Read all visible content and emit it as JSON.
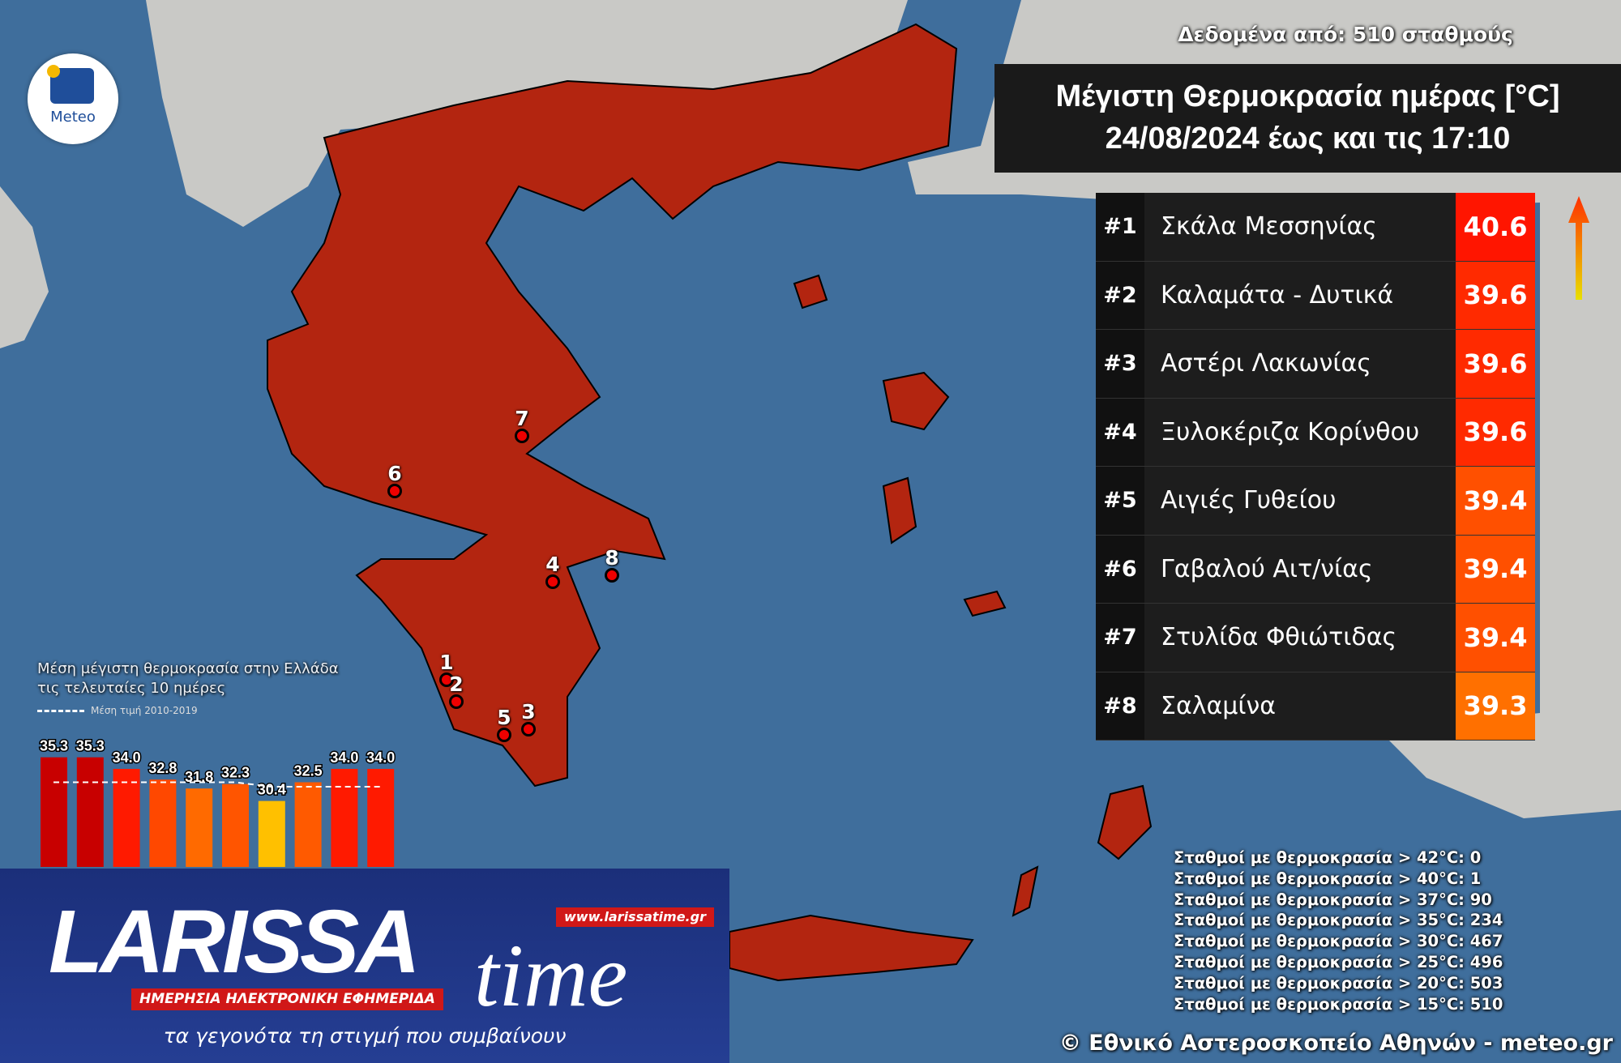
{
  "header": {
    "data_source": "Δεδομένα από: 510 σταθμούς",
    "title_line1": "Μέγιστη Θερμοκρασία ημέρας [°C]",
    "title_line2": "24/08/2024 έως και τις 17:10"
  },
  "logo": {
    "text": "Meteo",
    "icon": "meteo-logo"
  },
  "ranking": [
    {
      "rank": "#1",
      "station": "Σκάλα Μεσσηνίας",
      "value": "40.6",
      "color": "#ff1500"
    },
    {
      "rank": "#2",
      "station": "Καλαμάτα - Δυτικά",
      "value": "39.6",
      "color": "#ff2a00"
    },
    {
      "rank": "#3",
      "station": "Αστέρι Λακωνίας",
      "value": "39.6",
      "color": "#ff2a00"
    },
    {
      "rank": "#4",
      "station": "Ξυλοκέριζα Κορίνθου",
      "value": "39.6",
      "color": "#ff2a00"
    },
    {
      "rank": "#5",
      "station": "Αιγιές Γυθείου",
      "value": "39.4",
      "color": "#ff5000"
    },
    {
      "rank": "#6",
      "station": "Γαβαλού Αιτ/νίας",
      "value": "39.4",
      "color": "#ff5000"
    },
    {
      "rank": "#7",
      "station": "Στυλίδα Φθιώτιδας",
      "value": "39.4",
      "color": "#ff5000"
    },
    {
      "rank": "#8",
      "station": "Σαλαμίνα",
      "value": "39.3",
      "color": "#ff7000"
    }
  ],
  "map_markers": [
    "1",
    "2",
    "3",
    "4",
    "5",
    "6",
    "7",
    "8"
  ],
  "stats": [
    "Σταθμοί με θερμοκρασία > 42°C: 0",
    "Σταθμοί με θερμοκρασία > 40°C: 1",
    "Σταθμοί με θερμοκρασία > 37°C: 90",
    "Σταθμοί με θερμοκρασία > 35°C: 234",
    "Σταθμοί με θερμοκρασία > 30°C: 467",
    "Σταθμοί με θερμοκρασία > 25°C: 496",
    "Σταθμοί με θερμοκρασία > 20°C: 503",
    "Σταθμοί με θερμοκρασία > 15°C: 510"
  ],
  "copyright": "© Εθνικό Αστεροσκοπείο Αθηνών - meteo.gr",
  "chart_data": {
    "type": "bar",
    "title": "Μέση μέγιστη θερμοκρασία στην Ελλάδα τις τελευταίες 10 ημέρες",
    "title_line1": "Μέση μέγιστη θερμοκρασία στην Ελλάδα",
    "title_line2": "τις τελευταίες 10 ημέρες",
    "values": [
      35.3,
      35.3,
      34.0,
      32.8,
      31.8,
      32.3,
      30.4,
      32.5,
      34.0,
      34.0
    ],
    "labels": [
      "35.3",
      "35.3",
      "34.0",
      "32.8",
      "31.8",
      "32.3",
      "30.4",
      "32.5",
      "34.0",
      "34.0"
    ],
    "colors": [
      "#c80000",
      "#c80000",
      "#ff1a00",
      "#ff4800",
      "#ff6a00",
      "#ff5500",
      "#ffc000",
      "#ff5a00",
      "#ff1a00",
      "#ff1a00"
    ],
    "reference": {
      "name": "Μέση τιμή 2010-2019",
      "values": [
        32.5,
        32.5,
        32.5,
        32.5,
        32.5,
        32.5,
        32.0,
        32.0,
        32.0,
        32.0
      ]
    },
    "ylim": [
      23,
      37
    ]
  },
  "banner": {
    "brand": "LARISSA",
    "brand2": "time",
    "url": "www.larissatime.gr",
    "subtitle": "ΗΜΕΡΗΣΙΑ ΗΛΕΚΤΡΟΝΙΚΗ ΕΦΗΜΕΡΙΔΑ",
    "tagline": "τα γεγονότα τη στιγμή που συμβαίνουν"
  }
}
